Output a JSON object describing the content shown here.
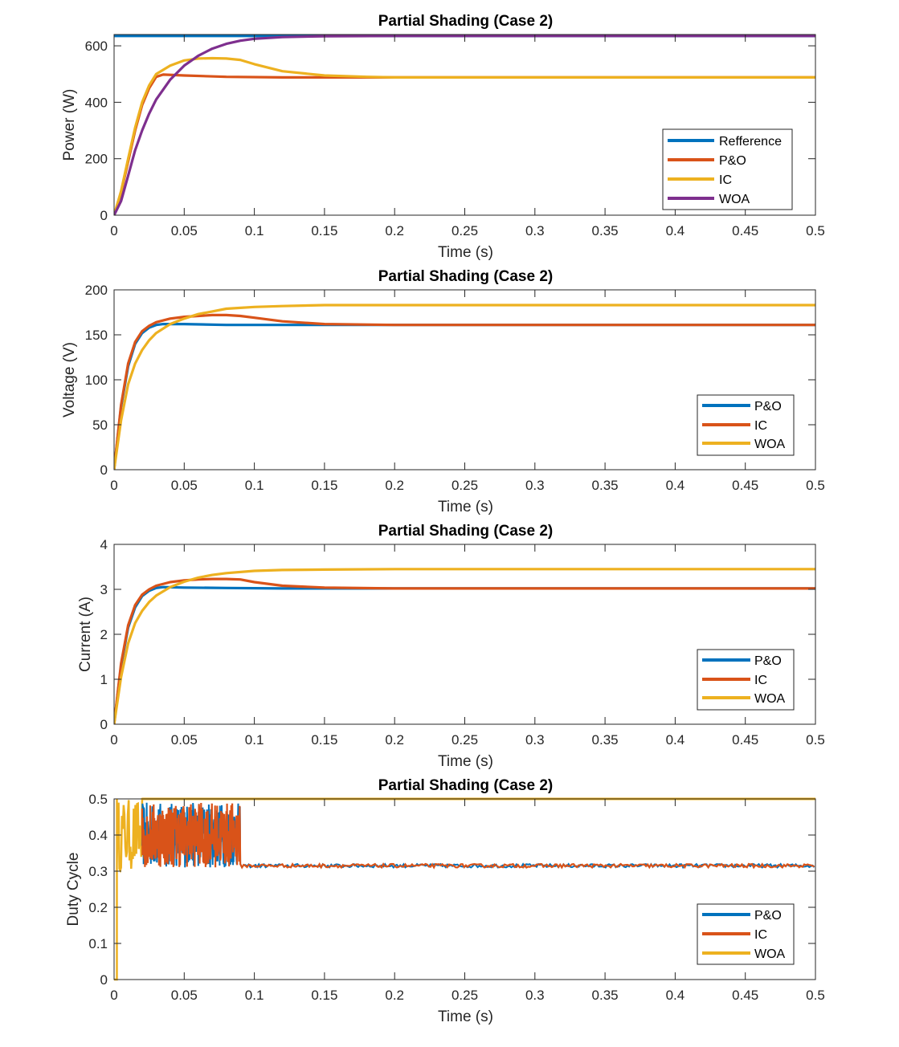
{
  "chart_data": [
    {
      "type": "line",
      "title": "Partial Shading (Case 2)",
      "xlabel": "Time (s)",
      "ylabel": "Power (W)",
      "xlim": [
        0,
        0.5
      ],
      "ylim": [
        0,
        640
      ],
      "xticks": [
        0,
        0.05,
        0.1,
        0.15,
        0.2,
        0.25,
        0.3,
        0.35,
        0.4,
        0.45,
        0.5
      ],
      "xtick_labels": [
        "0",
        "0.05",
        "0.1",
        "0.15",
        "0.2",
        "0.25",
        "0.3",
        "0.35",
        "0.4",
        "0.45",
        "0.5"
      ],
      "yticks": [
        0,
        200,
        400,
        600
      ],
      "ytick_labels": [
        "0",
        "200",
        "400",
        "600"
      ],
      "legend_position": "lower-right",
      "series": [
        {
          "name": "Refference",
          "color": "#0072BD",
          "x": [
            0,
            0.5
          ],
          "y": [
            635,
            635
          ]
        },
        {
          "name": "P&O",
          "color": "#D95319",
          "x": [
            0,
            0.005,
            0.01,
            0.015,
            0.02,
            0.025,
            0.03,
            0.035,
            0.05,
            0.08,
            0.12,
            0.2,
            0.5
          ],
          "y": [
            0,
            80,
            190,
            300,
            390,
            450,
            490,
            498,
            495,
            490,
            488,
            488,
            488
          ]
        },
        {
          "name": "IC",
          "color": "#EDB120",
          "x": [
            0,
            0.005,
            0.01,
            0.015,
            0.02,
            0.025,
            0.03,
            0.04,
            0.05,
            0.06,
            0.07,
            0.08,
            0.09,
            0.1,
            0.12,
            0.15,
            0.18,
            0.2,
            0.5
          ],
          "y": [
            0,
            85,
            200,
            310,
            400,
            460,
            500,
            530,
            548,
            555,
            556,
            555,
            550,
            535,
            510,
            495,
            490,
            488,
            488
          ]
        },
        {
          "name": "WOA",
          "color": "#7E2F8E",
          "x": [
            0,
            0.005,
            0.01,
            0.015,
            0.02,
            0.025,
            0.03,
            0.04,
            0.05,
            0.06,
            0.07,
            0.08,
            0.09,
            0.1,
            0.12,
            0.15,
            0.2,
            0.5
          ],
          "y": [
            0,
            50,
            140,
            230,
            300,
            360,
            410,
            480,
            530,
            565,
            590,
            607,
            618,
            625,
            631,
            634,
            635,
            635
          ]
        }
      ]
    },
    {
      "type": "line",
      "title": "Partial Shading (Case 2)",
      "xlabel": "Time (s)",
      "ylabel": "Voltage (V)",
      "xlim": [
        0,
        0.5
      ],
      "ylim": [
        0,
        200
      ],
      "xticks": [
        0,
        0.05,
        0.1,
        0.15,
        0.2,
        0.25,
        0.3,
        0.35,
        0.4,
        0.45,
        0.5
      ],
      "xtick_labels": [
        "0",
        "0.05",
        "0.1",
        "0.15",
        "0.2",
        "0.25",
        "0.3",
        "0.35",
        "0.4",
        "0.45",
        "0.5"
      ],
      "yticks": [
        0,
        50,
        100,
        150,
        200
      ],
      "ytick_labels": [
        "0",
        "50",
        "100",
        "150",
        "200"
      ],
      "legend_position": "lower-right",
      "series": [
        {
          "name": "P&O",
          "color": "#0072BD",
          "x": [
            0,
            0.005,
            0.01,
            0.015,
            0.02,
            0.025,
            0.03,
            0.035,
            0.05,
            0.08,
            0.12,
            0.5
          ],
          "y": [
            0,
            70,
            115,
            140,
            152,
            158,
            161,
            162,
            162,
            161,
            161,
            161
          ]
        },
        {
          "name": "IC",
          "color": "#D95319",
          "x": [
            0,
            0.005,
            0.01,
            0.015,
            0.02,
            0.025,
            0.03,
            0.04,
            0.05,
            0.06,
            0.07,
            0.08,
            0.09,
            0.1,
            0.12,
            0.15,
            0.2,
            0.5
          ],
          "y": [
            0,
            72,
            118,
            142,
            154,
            160,
            164,
            168,
            170,
            171,
            172,
            172,
            171,
            169,
            165,
            162,
            161,
            161
          ]
        },
        {
          "name": "WOA",
          "color": "#EDB120",
          "x": [
            0,
            0.005,
            0.01,
            0.015,
            0.02,
            0.025,
            0.03,
            0.04,
            0.05,
            0.06,
            0.07,
            0.08,
            0.1,
            0.12,
            0.15,
            0.2,
            0.5
          ],
          "y": [
            0,
            55,
            95,
            118,
            133,
            144,
            152,
            162,
            168,
            173,
            176,
            179,
            181,
            182,
            183,
            183,
            183
          ]
        }
      ]
    },
    {
      "type": "line",
      "title": "Partial Shading (Case 2)",
      "xlabel": "Time (s)",
      "ylabel": "Current (A)",
      "xlim": [
        0,
        0.5
      ],
      "ylim": [
        0,
        4
      ],
      "xticks": [
        0,
        0.05,
        0.1,
        0.15,
        0.2,
        0.25,
        0.3,
        0.35,
        0.4,
        0.45,
        0.5
      ],
      "xtick_labels": [
        "0",
        "0.05",
        "0.1",
        "0.15",
        "0.2",
        "0.25",
        "0.3",
        "0.35",
        "0.4",
        "0.45",
        "0.5"
      ],
      "yticks": [
        0,
        1,
        2,
        3,
        4
      ],
      "ytick_labels": [
        "0",
        "1",
        "2",
        "3",
        "4"
      ],
      "legend_position": "lower-right",
      "series": [
        {
          "name": "P&O",
          "color": "#0072BD",
          "x": [
            0,
            0.005,
            0.01,
            0.015,
            0.02,
            0.025,
            0.03,
            0.035,
            0.05,
            0.08,
            0.12,
            0.5
          ],
          "y": [
            0,
            1.3,
            2.15,
            2.6,
            2.85,
            2.97,
            3.03,
            3.05,
            3.04,
            3.03,
            3.02,
            3.02
          ]
        },
        {
          "name": "IC",
          "color": "#D95319",
          "x": [
            0,
            0.005,
            0.01,
            0.015,
            0.02,
            0.025,
            0.03,
            0.04,
            0.05,
            0.06,
            0.07,
            0.08,
            0.09,
            0.1,
            0.12,
            0.15,
            0.2,
            0.5
          ],
          "y": [
            0,
            1.35,
            2.2,
            2.65,
            2.88,
            3.0,
            3.08,
            3.16,
            3.2,
            3.22,
            3.23,
            3.23,
            3.22,
            3.16,
            3.08,
            3.04,
            3.02,
            3.02
          ]
        },
        {
          "name": "WOA",
          "color": "#EDB120",
          "x": [
            0,
            0.005,
            0.01,
            0.015,
            0.02,
            0.025,
            0.03,
            0.04,
            0.05,
            0.06,
            0.07,
            0.08,
            0.1,
            0.12,
            0.15,
            0.2,
            0.5
          ],
          "y": [
            0,
            1.05,
            1.8,
            2.25,
            2.52,
            2.72,
            2.86,
            3.05,
            3.17,
            3.26,
            3.32,
            3.36,
            3.41,
            3.43,
            3.44,
            3.45,
            3.45
          ]
        }
      ]
    },
    {
      "type": "line",
      "title": "Partial Shading (Case 2)",
      "xlabel": "Time (s)",
      "ylabel": "Duty Cycle",
      "xlim": [
        0,
        0.5
      ],
      "ylim": [
        0,
        0.5
      ],
      "xticks": [
        0,
        0.05,
        0.1,
        0.15,
        0.2,
        0.25,
        0.3,
        0.35,
        0.4,
        0.45,
        0.5
      ],
      "xtick_labels": [
        "0",
        "0.05",
        "0.1",
        "0.15",
        "0.2",
        "0.25",
        "0.3",
        "0.35",
        "0.4",
        "0.45",
        "0.5"
      ],
      "yticks": [
        0,
        0.1,
        0.2,
        0.3,
        0.4,
        0.5
      ],
      "ytick_labels": [
        "0",
        "0.1",
        "0.2",
        "0.3",
        "0.4",
        "0.5"
      ],
      "legend_position": "lower-right",
      "series": [
        {
          "name": "P&O",
          "color": "#0072BD",
          "pattern": "oscillating",
          "segments": [
            {
              "x": [
                0.02,
                0.09
              ],
              "y": [
                0.31,
                0.49
              ]
            },
            {
              "x": [
                0.09,
                0.5
              ],
              "y": [
                0.31,
                0.32
              ]
            }
          ]
        },
        {
          "name": "IC",
          "color": "#D95319",
          "pattern": "oscillating",
          "segments": [
            {
              "x": [
                0.02,
                0.09
              ],
              "y": [
                0.31,
                0.49
              ]
            },
            {
              "x": [
                0.09,
                0.5
              ],
              "y": [
                0.31,
                0.32
              ]
            }
          ]
        },
        {
          "name": "WOA",
          "color": "#EDB120",
          "pattern": "oscillating",
          "segments": [
            {
              "x": [
                0.002,
                0.02
              ],
              "y": [
                0.3,
                0.5
              ]
            }
          ],
          "steady": {
            "x": [
              0.02,
              0.5
            ],
            "y": 0.5
          }
        }
      ]
    }
  ]
}
